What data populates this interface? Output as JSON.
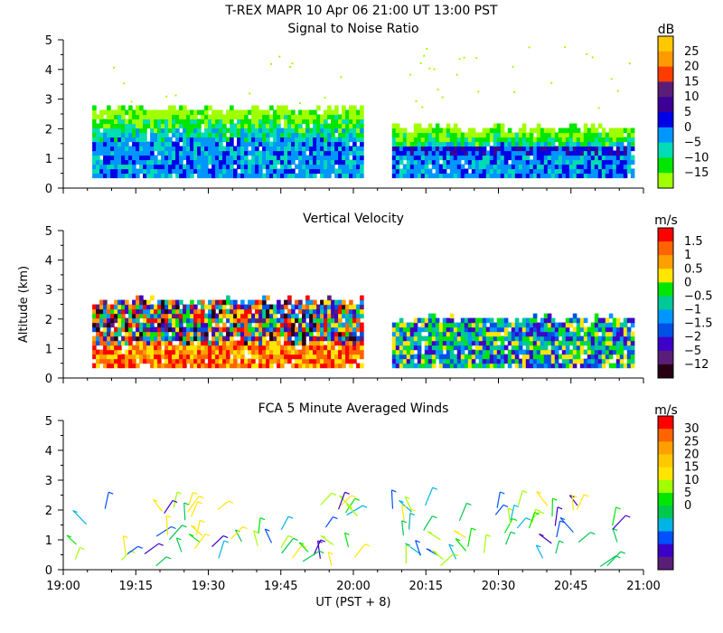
{
  "header": {
    "line1": "T-REX  MAPR 10 Apr 06  21:00 UT  13:00  PST"
  },
  "shared_x": {
    "ticks": [
      "19:00",
      "19:15",
      "19:30",
      "19:45",
      "20:00",
      "20:15",
      "20:30",
      "20:45",
      "21:00"
    ],
    "xlabel": "UT  (PST + 8)"
  },
  "chart_data": [
    {
      "type": "heatmap",
      "title": "Signal to Noise Ratio",
      "ylabel": "",
      "unit": "dB",
      "xlim_minutes": [
        0,
        120
      ],
      "ylim_km": [
        0,
        5
      ],
      "yticks": [
        "0",
        "1",
        "2",
        "3",
        "4",
        "5"
      ],
      "colorbar": {
        "labels": [
          "25",
          "20",
          "15",
          "10",
          "5",
          "0",
          "−5",
          "−10",
          "−15"
        ],
        "colors": [
          "#ffc800",
          "#ff9b00",
          "#ff3c00",
          "#5a1e78",
          "#3c0096",
          "#0000e6",
          "#0096ff",
          "#00dcb4",
          "#00e600",
          "#a0ff00"
        ]
      },
      "data_segments": [
        {
          "start_min": 6,
          "end_min": 62,
          "top_km": 2.6,
          "base_km": 0.35
        },
        {
          "start_min": 68,
          "end_min": 118,
          "top_km": 1.95,
          "base_km": 0.35
        }
      ]
    },
    {
      "type": "heatmap",
      "title": "Vertical Velocity",
      "ylabel": "Altitude (km)",
      "unit": "m/s",
      "xlim_minutes": [
        0,
        120
      ],
      "ylim_km": [
        0,
        5
      ],
      "yticks": [
        "0",
        "1",
        "2",
        "3",
        "4",
        "5"
      ],
      "colorbar": {
        "labels": [
          "1.5",
          "1",
          "0.5",
          "0",
          "−0.5",
          "−1",
          "−1.5",
          "−2",
          "−5",
          "−12"
        ],
        "colors": [
          "#ff0000",
          "#ff6400",
          "#ffa000",
          "#ffe600",
          "#00e600",
          "#00c896",
          "#0096ff",
          "#0050e6",
          "#3c00c8",
          "#5a1e78",
          "#280014"
        ]
      },
      "data_segments": [
        {
          "start_min": 6,
          "end_min": 62,
          "top_km": 2.55,
          "base_km": 0.35
        },
        {
          "start_min": 68,
          "end_min": 118,
          "top_km": 1.95,
          "base_km": 0.35
        }
      ]
    },
    {
      "type": "scatter",
      "title": "FCA 5 Minute Averaged Winds",
      "ylabel": "",
      "unit": "m/s",
      "xlim_minutes": [
        0,
        120
      ],
      "ylim_km": [
        0,
        5
      ],
      "yticks": [
        "0",
        "1",
        "2",
        "3",
        "4",
        "5"
      ],
      "colorbar": {
        "labels": [
          "30",
          "25",
          "20",
          "15",
          "10",
          "5",
          "0"
        ],
        "colors": [
          "#ff0000",
          "#ff6400",
          "#ffa000",
          "#ffc800",
          "#ffe600",
          "#a0ff00",
          "#00e600",
          "#00c850",
          "#00b4e6",
          "#0050ff",
          "#3c00c8",
          "#5a1e78"
        ]
      }
    }
  ]
}
